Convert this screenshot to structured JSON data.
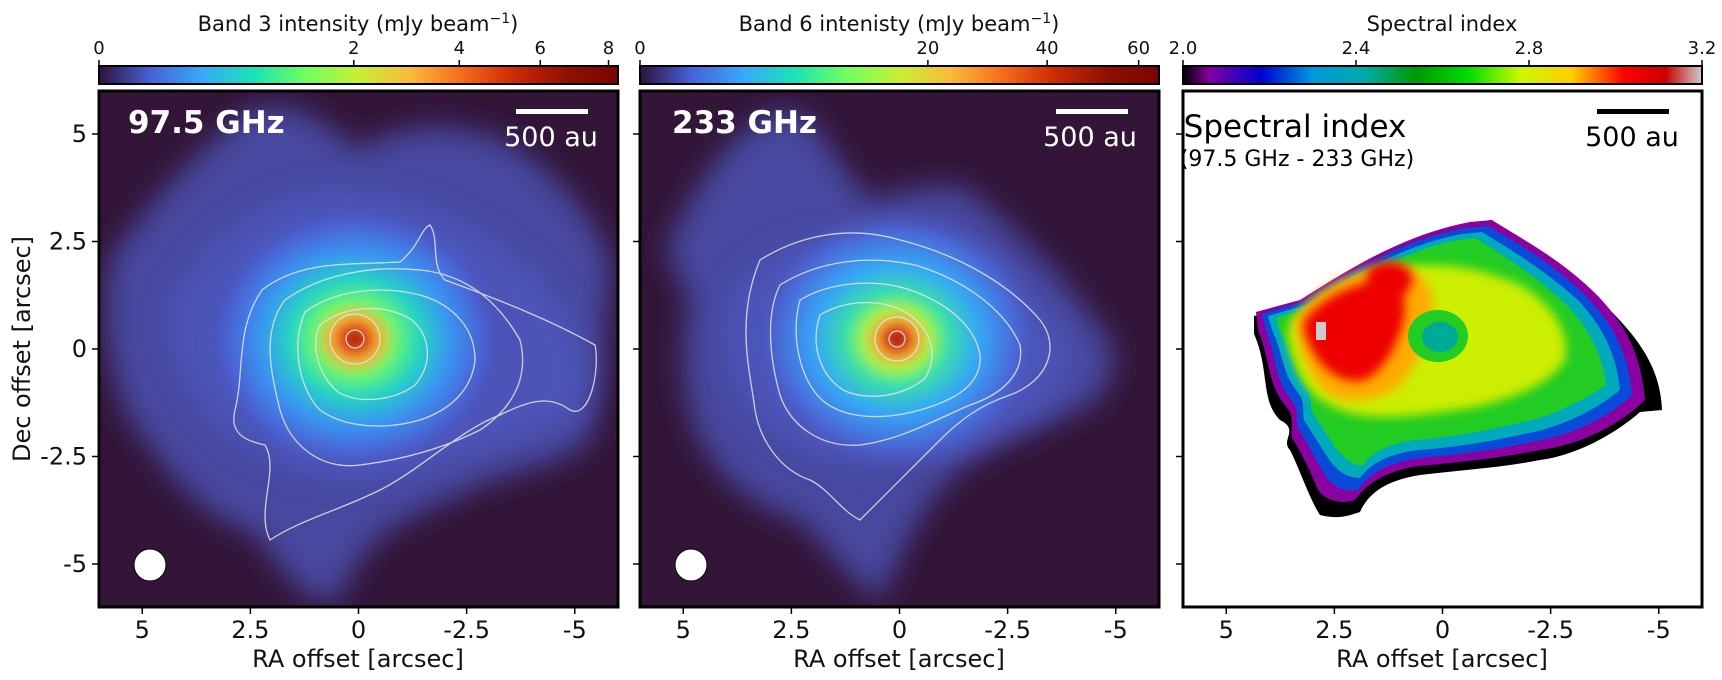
{
  "chart_data": [
    {
      "type": "heatmap",
      "panel": "band3",
      "frequency_label": "97.5 GHz",
      "colorbar": {
        "label_prefix": "Band 3 intensity (mJy beam",
        "label_exp": "−1",
        "label_suffix": ")",
        "range": [
          0,
          8.3
        ],
        "ticks": [
          0,
          2,
          4,
          6,
          8
        ],
        "tick_labels": [
          "0",
          "2",
          "4",
          "6",
          "8"
        ],
        "stretch": "sqrt",
        "colormap": "turbo"
      },
      "scalebar_label": "500 au",
      "xlabel": "RA offset [arcsec]",
      "ylabel": "Dec offset [arcsec]",
      "xlim": [
        6,
        -6
      ],
      "ylim": [
        -6,
        6
      ],
      "xticks": [
        5,
        2.5,
        0,
        -2.5,
        -5
      ],
      "xtick_labels": [
        "5",
        "2.5",
        "0",
        "-2.5",
        "-5"
      ],
      "yticks": [
        5,
        2.5,
        0,
        -2.5,
        -5
      ],
      "ytick_labels": [
        "5",
        "2.5",
        "0",
        "-2.5",
        "-5"
      ],
      "peak": {
        "ra": 0,
        "dec": 0
      },
      "contour_count": 6,
      "beam": {
        "major_arcsec": 0.75,
        "minor_arcsec": 0.75
      }
    },
    {
      "type": "heatmap",
      "panel": "band6",
      "frequency_label": "233 GHz",
      "colorbar": {
        "label_prefix": "Band 6 intenisty (mJy beam",
        "label_exp": "−1",
        "label_suffix": ")",
        "range": [
          0,
          65
        ],
        "ticks": [
          0,
          20,
          40,
          60
        ],
        "tick_labels": [
          "0",
          "20",
          "40",
          "60"
        ],
        "stretch": "sqrt",
        "colormap": "turbo"
      },
      "scalebar_label": "500 au",
      "xlabel": "RA offset [arcsec]",
      "xlim": [
        6,
        -6
      ],
      "ylim": [
        -6,
        6
      ],
      "xticks": [
        5,
        2.5,
        0,
        -2.5,
        -5
      ],
      "xtick_labels": [
        "5",
        "2.5",
        "0",
        "-2.5",
        "-5"
      ],
      "peak": {
        "ra": 0,
        "dec": 0
      },
      "contour_count": 6,
      "beam": {
        "major_arcsec": 0.75,
        "minor_arcsec": 0.75
      }
    },
    {
      "type": "heatmap",
      "panel": "spectral_index",
      "title": "Spectral index",
      "subtitle": "(97.5 GHz - 233 GHz)",
      "colorbar": {
        "label": "Spectral index",
        "range": [
          2.0,
          3.2
        ],
        "ticks": [
          2.0,
          2.4,
          2.8,
          3.2
        ],
        "tick_labels": [
          "2.0",
          "2.4",
          "2.8",
          "3.2"
        ],
        "colormap": "nipy_spectral"
      },
      "scalebar_label": "500 au",
      "xlabel": "RA offset [arcsec]",
      "xlim": [
        6,
        -6
      ],
      "ylim": [
        -6,
        6
      ],
      "xticks": [
        5,
        2.5,
        0,
        -2.5,
        -5
      ],
      "xtick_labels": [
        "5",
        "2.5",
        "0",
        "-2.5",
        "-5"
      ],
      "central_value": 2.5,
      "ring_value": 2.75,
      "ne_peak_value": 3.0,
      "edge_value": 2.2
    }
  ],
  "colors": {
    "background_dark": "#331538",
    "contour": "#e6e6e6",
    "frame": "#000000"
  }
}
